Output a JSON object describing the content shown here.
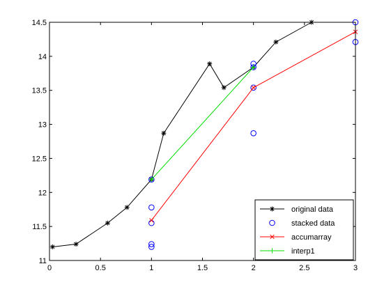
{
  "chart_data": {
    "type": "line",
    "title": "",
    "xlabel": "",
    "ylabel": "",
    "xlim": [
      0,
      3
    ],
    "ylim": [
      11,
      14.5
    ],
    "x_ticks": [
      0,
      0.5,
      1,
      1.5,
      2,
      2.5,
      3
    ],
    "x_tick_labels": [
      "0",
      "0.5",
      "1",
      "1.5",
      "2",
      "2.5",
      "3"
    ],
    "y_ticks": [
      11,
      11.5,
      12,
      12.5,
      13,
      13.5,
      14,
      14.5
    ],
    "y_tick_labels": [
      "11",
      "11.5",
      "12",
      "12.5",
      "13",
      "13.5",
      "14",
      "14.5"
    ],
    "grid": false,
    "legend_position": "bottom-right",
    "series": [
      {
        "name": "original data",
        "color": "#000000",
        "style": "line",
        "marker": "asterisk",
        "x": [
          0.03,
          0.26,
          0.57,
          0.76,
          1.0,
          1.12,
          1.57,
          1.71,
          2.0,
          2.22,
          2.57
        ],
        "y": [
          11.2,
          11.24,
          11.55,
          11.78,
          12.19,
          12.87,
          13.89,
          13.54,
          13.84,
          14.21,
          14.5
        ]
      },
      {
        "name": "stacked data",
        "color": "#0000ff",
        "style": "markers",
        "marker": "circle",
        "x": [
          1,
          1,
          1,
          1,
          1,
          2,
          2,
          2,
          2,
          3,
          3
        ],
        "y": [
          11.2,
          11.24,
          11.55,
          11.78,
          12.19,
          12.87,
          13.54,
          13.84,
          13.89,
          14.21,
          14.5
        ]
      },
      {
        "name": "accumarray",
        "color": "#ff0000",
        "style": "line",
        "marker": "x",
        "x": [
          1,
          2,
          3
        ],
        "y": [
          11.59,
          13.54,
          14.36
        ]
      },
      {
        "name": "interp1",
        "color": "#00dd00",
        "style": "line",
        "marker": "plus",
        "x": [
          1,
          2
        ],
        "y": [
          12.19,
          13.84
        ]
      }
    ]
  }
}
